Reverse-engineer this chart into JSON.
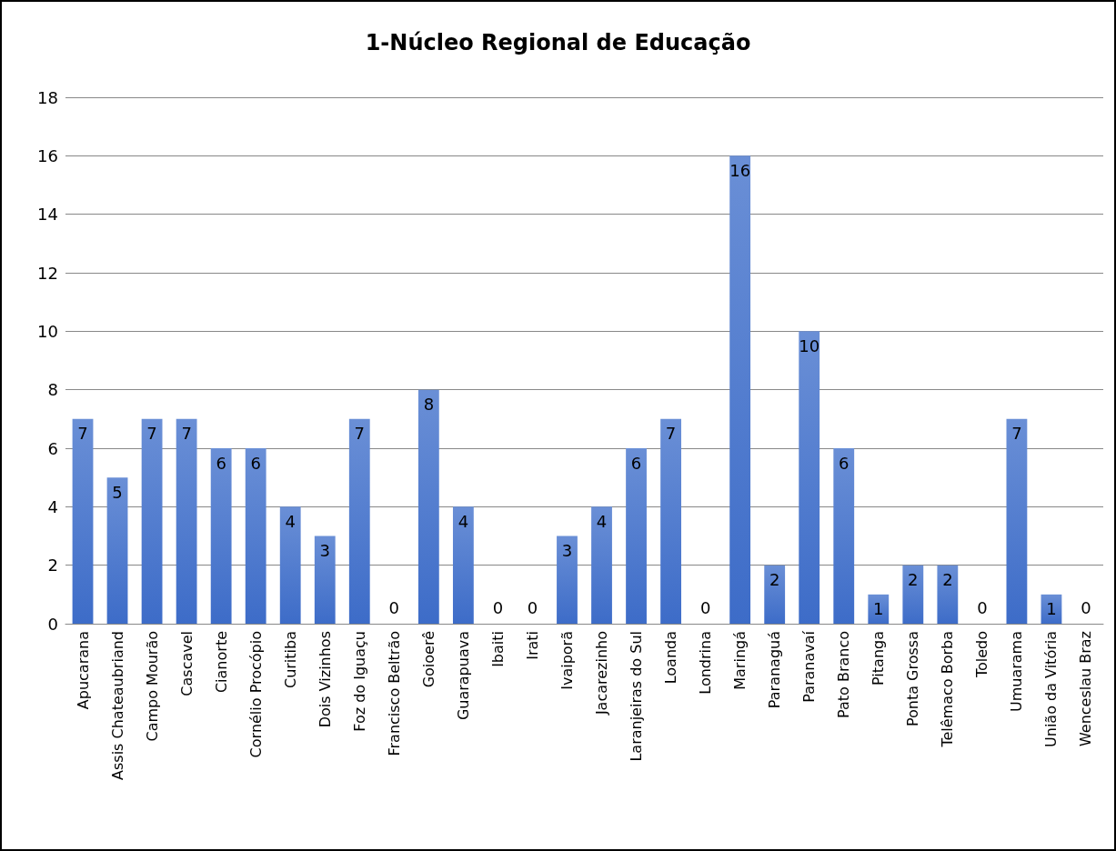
{
  "chart_data": {
    "type": "bar",
    "title": "1-Núcleo Regional de Educação",
    "categories": [
      "Apucarana",
      "Assis Chateaubriand",
      "Campo Mourão",
      "Cascavel",
      "Cianorte",
      "Cornélio Procópio",
      "Curitiba",
      "Dois Vizinhos",
      "Foz do Iguaçu",
      "Francisco Beltrão",
      "Goioerê",
      "Guarapuava",
      "Ibaiti",
      "Irati",
      "Ivaiporã",
      "Jacarezinho",
      "Laranjeiras do Sul",
      "Loanda",
      "Londrina",
      "Maringá",
      "Paranaguá",
      "Paranavaí",
      "Pato Branco",
      "Pitanga",
      "Ponta Grossa",
      "Telêmaco Borba",
      "Toledo",
      "Umuarama",
      "União da Vitória",
      "Wenceslau Braz"
    ],
    "values": [
      7,
      5,
      7,
      7,
      6,
      6,
      4,
      3,
      7,
      0,
      8,
      4,
      0,
      0,
      3,
      4,
      6,
      7,
      0,
      16,
      2,
      10,
      6,
      1,
      2,
      2,
      0,
      7,
      1,
      0
    ],
    "color": "#3d6cc8",
    "ylim": [
      0,
      18
    ],
    "yticks": [
      0,
      2,
      4,
      6,
      8,
      10,
      12,
      14,
      16,
      18
    ],
    "grid": "y",
    "data_labels": true
  }
}
